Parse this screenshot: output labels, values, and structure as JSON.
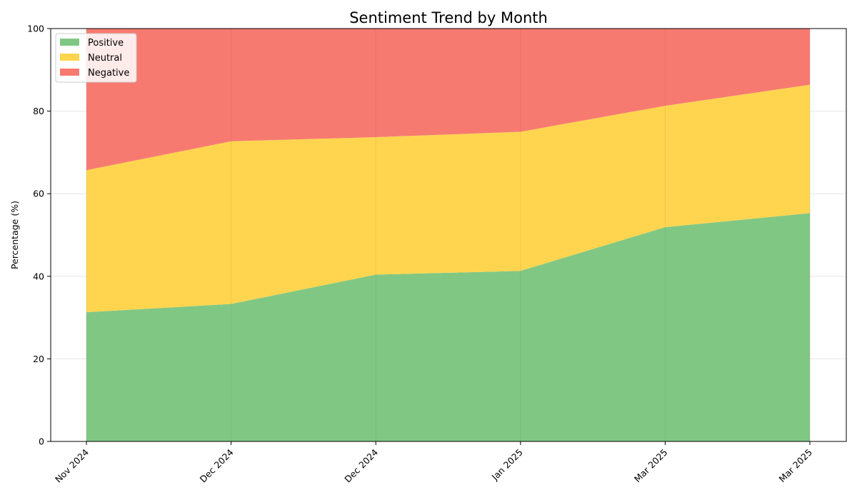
{
  "chart_data": {
    "type": "area",
    "stacked": true,
    "title": "Sentiment Trend by Month",
    "xlabel": "",
    "ylabel": "Percentage (%)",
    "ylim": [
      0,
      100
    ],
    "yticks": [
      0,
      20,
      40,
      60,
      80,
      100
    ],
    "x_tick_labels": [
      "Nov 2024",
      "Dec 2024",
      "Dec 2024",
      "Jan 2025",
      "Mar 2025",
      "Mar 2025"
    ],
    "x_tick_rotation": 45,
    "grid": true,
    "legend_position": "upper-left",
    "series": [
      {
        "name": "Positive",
        "color": "#81c784",
        "values": [
          31.3,
          33.3,
          40.4,
          41.3,
          51.9,
          55.3
        ]
      },
      {
        "name": "Neutral",
        "color": "#ffd54f",
        "values": [
          34.4,
          39.4,
          33.3,
          33.7,
          29.4,
          31.1
        ]
      },
      {
        "name": "Negative",
        "color": "#f77a71",
        "values": [
          34.3,
          27.3,
          26.3,
          25.0,
          18.7,
          13.6
        ]
      }
    ]
  }
}
